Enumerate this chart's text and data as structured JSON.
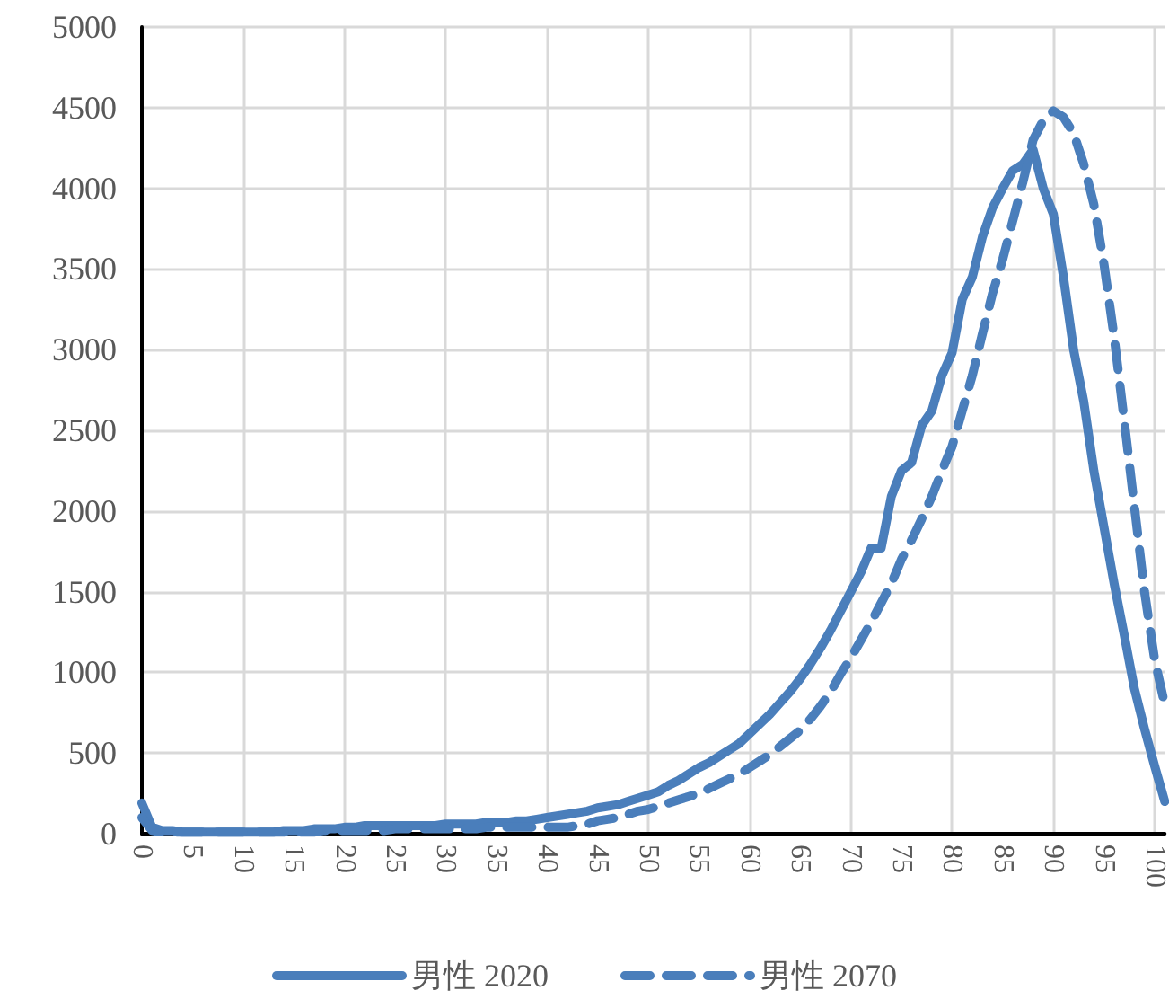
{
  "chart_data": {
    "type": "line",
    "categories": [
      "0",
      null,
      null,
      null,
      null,
      "5",
      null,
      null,
      null,
      null,
      "10",
      null,
      null,
      null,
      null,
      "15",
      null,
      null,
      null,
      null,
      "20",
      null,
      null,
      null,
      null,
      "25",
      null,
      null,
      null,
      null,
      "30",
      null,
      null,
      null,
      null,
      "35",
      null,
      null,
      null,
      null,
      "40",
      null,
      null,
      null,
      null,
      "45",
      null,
      null,
      null,
      null,
      "50",
      null,
      null,
      null,
      null,
      "55",
      null,
      null,
      null,
      null,
      "60",
      null,
      null,
      null,
      null,
      "65",
      null,
      null,
      null,
      null,
      "70",
      null,
      null,
      null,
      null,
      "75",
      null,
      null,
      null,
      null,
      "80",
      null,
      null,
      null,
      null,
      "85",
      null,
      null,
      null,
      null,
      "90",
      null,
      null,
      null,
      null,
      "95",
      null,
      null,
      null,
      null,
      "100",
      null
    ],
    "series": [
      {
        "name": "男性 2020",
        "color": "#4a7ebb",
        "line_style": "solid",
        "values": [
          190,
          40,
          20,
          20,
          10,
          10,
          10,
          10,
          10,
          10,
          10,
          10,
          10,
          10,
          20,
          20,
          20,
          30,
          30,
          30,
          40,
          40,
          50,
          50,
          50,
          50,
          50,
          50,
          50,
          50,
          60,
          60,
          60,
          60,
          70,
          70,
          70,
          80,
          80,
          90,
          100,
          110,
          120,
          130,
          140,
          160,
          170,
          180,
          200,
          220,
          240,
          260,
          300,
          330,
          370,
          410,
          440,
          480,
          520,
          560,
          620,
          680,
          740,
          810,
          880,
          960,
          1050,
          1150,
          1260,
          1380,
          1500,
          1620,
          1770,
          1770,
          2090,
          2250,
          2300,
          2530,
          2620,
          2840,
          2980,
          3310,
          3450,
          3700,
          3880,
          4000,
          4110,
          4150,
          4240,
          4000,
          3840,
          3450,
          3000,
          2680,
          2250,
          1900,
          1550,
          1230,
          900,
          650,
          420,
          200
        ]
      },
      {
        "name": "男性 2070",
        "color": "#4a7ebb",
        "line_style": "dashed",
        "values": [
          100,
          20,
          10,
          10,
          10,
          10,
          10,
          10,
          10,
          10,
          10,
          10,
          10,
          10,
          10,
          10,
          10,
          10,
          20,
          20,
          20,
          20,
          20,
          20,
          20,
          30,
          30,
          30,
          30,
          30,
          30,
          30,
          30,
          30,
          40,
          40,
          40,
          40,
          40,
          40,
          40,
          40,
          40,
          50,
          60,
          80,
          90,
          100,
          120,
          140,
          150,
          170,
          190,
          210,
          230,
          250,
          280,
          310,
          340,
          370,
          410,
          450,
          490,
          540,
          590,
          640,
          710,
          790,
          880,
          990,
          1090,
          1200,
          1310,
          1430,
          1550,
          1700,
          1820,
          1950,
          2090,
          2250,
          2400,
          2620,
          2840,
          3100,
          3350,
          3560,
          3800,
          4040,
          4300,
          4420,
          4480,
          4440,
          4340,
          4150,
          3900,
          3530,
          3080,
          2560,
          2030,
          1500,
          1080,
          800
        ]
      }
    ],
    "ylim": [
      0,
      5000
    ],
    "yticks": [
      {
        "value": 0,
        "label": "0"
      },
      {
        "value": 500,
        "label": "500"
      },
      {
        "value": 1000,
        "label": "1000"
      },
      {
        "value": 1500,
        "label": "1500"
      },
      {
        "value": 2000,
        "label": "2000"
      },
      {
        "value": 2500,
        "label": "2500"
      },
      {
        "value": 3000,
        "label": "3000"
      },
      {
        "value": 3500,
        "label": "3500"
      },
      {
        "value": 4000,
        "label": "4000"
      },
      {
        "value": 4500,
        "label": "4500"
      },
      {
        "value": 5000,
        "label": "5000"
      }
    ],
    "grid": true,
    "legend": "bottom",
    "marker": "none"
  }
}
